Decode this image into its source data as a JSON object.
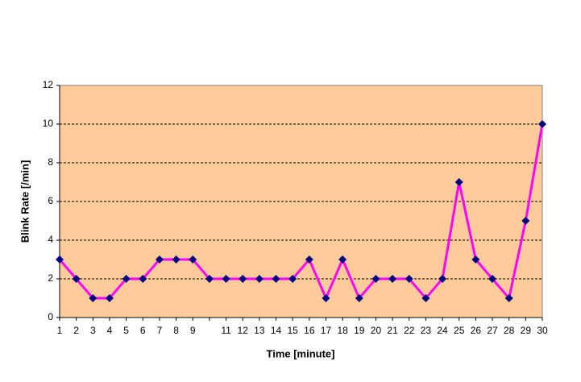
{
  "chart_data": {
    "type": "line",
    "xlabel": "Time [minute]",
    "ylabel": "Blink Rate [/min]",
    "categories": [
      1,
      2,
      3,
      4,
      5,
      6,
      7,
      8,
      9,
      null,
      11,
      12,
      13,
      14,
      15,
      16,
      17,
      18,
      19,
      20,
      21,
      22,
      23,
      24,
      25,
      26,
      27,
      28,
      29,
      30
    ],
    "series": [
      {
        "name": "Blink Rate",
        "color": "#ff00ff",
        "marker_color": "#000080",
        "values": [
          3,
          2,
          1,
          1,
          2,
          2,
          3,
          3,
          3,
          2,
          2,
          2,
          2,
          2,
          2,
          3,
          1,
          3,
          1,
          2,
          2,
          2,
          1,
          2,
          7,
          3,
          2,
          1,
          5,
          10
        ]
      }
    ],
    "ylim": [
      0,
      12
    ],
    "yticks": [
      0,
      2,
      4,
      6,
      8,
      10,
      12
    ],
    "grid": true,
    "plot_background": "#ffcc99"
  }
}
